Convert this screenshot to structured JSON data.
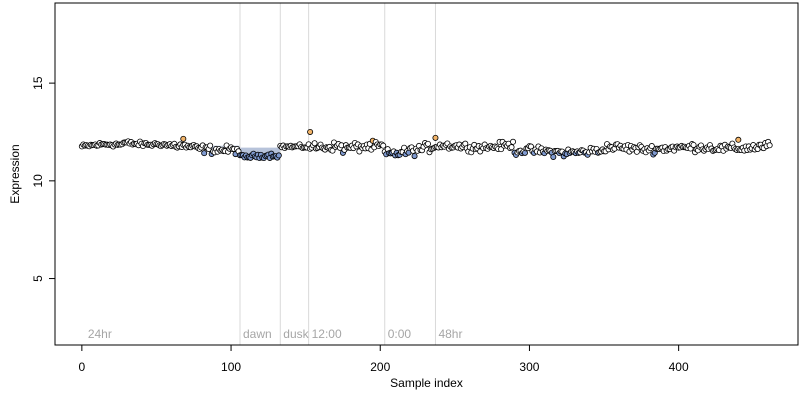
{
  "chart_data": {
    "type": "scatter",
    "xlabel": "Sample index",
    "ylabel": "Expression",
    "xlim": [
      -18,
      480
    ],
    "ylim": [
      1.6,
      19.1
    ],
    "x_ticks": [
      0,
      100,
      200,
      300,
      400
    ],
    "y_ticks": [
      5,
      10,
      15
    ],
    "grid": false,
    "n_points": 462,
    "phase_markers": [
      {
        "x": 106,
        "label": "dawn"
      },
      {
        "x": 133,
        "label": "dusk"
      },
      {
        "x": 152,
        "label": "12:00"
      },
      {
        "x": 203,
        "label": "0:00"
      },
      {
        "x": 237,
        "label": "48hr"
      }
    ],
    "corner_label": {
      "x": 2,
      "label": "24hr"
    },
    "highlight_bands": [
      {
        "x_from": 106,
        "x_to": 133,
        "y_from": 11.3,
        "y_to": 11.7,
        "color": "#aab9d4"
      },
      {
        "x_from": 80,
        "x_to": 106,
        "y_from": 11.6,
        "y_to": 11.8,
        "color": "#c4d0e6"
      }
    ],
    "colors": {
      "point_fill": "#ffffff",
      "point_stroke": "#000000",
      "low_fill": "#7f9ad0",
      "high_fill": "#f2b469",
      "marker_line": "#d9d9d9",
      "phase_label": "#a6a6a6"
    },
    "segments": [
      {
        "x_from": 0,
        "x_to": 28,
        "y_from": 11.75,
        "y_to": 11.85,
        "noise": 0.1
      },
      {
        "x_from": 28,
        "x_to": 55,
        "y_from": 11.95,
        "y_to": 11.9,
        "noise": 0.1
      },
      {
        "x_from": 55,
        "x_to": 80,
        "y_from": 11.85,
        "y_to": 11.6,
        "noise": 0.15
      },
      {
        "x_from": 80,
        "x_to": 106,
        "y_from": 11.6,
        "y_to": 11.65,
        "noise": 0.18
      },
      {
        "x_from": 106,
        "x_to": 133,
        "y_from": 11.25,
        "y_to": 11.25,
        "noise": 0.1
      },
      {
        "x_from": 133,
        "x_to": 152,
        "y_from": 11.7,
        "y_to": 11.8,
        "noise": 0.08
      },
      {
        "x_from": 152,
        "x_to": 175,
        "y_from": 11.8,
        "y_to": 11.75,
        "noise": 0.18
      },
      {
        "x_from": 175,
        "x_to": 203,
        "y_from": 11.6,
        "y_to": 11.8,
        "noise": 0.2
      },
      {
        "x_from": 203,
        "x_to": 237,
        "y_from": 11.4,
        "y_to": 11.7,
        "noise": 0.2
      },
      {
        "x_from": 237,
        "x_to": 290,
        "y_from": 11.75,
        "y_to": 11.8,
        "noise": 0.16
      },
      {
        "x_from": 290,
        "x_to": 350,
        "y_from": 11.5,
        "y_to": 11.5,
        "noise": 0.18
      },
      {
        "x_from": 350,
        "x_to": 400,
        "y_from": 11.65,
        "y_to": 11.7,
        "noise": 0.18
      },
      {
        "x_from": 400,
        "x_to": 462,
        "y_from": 11.65,
        "y_to": 11.75,
        "noise": 0.18
      }
    ],
    "notable_points": [
      {
        "x": 153,
        "y": 12.5
      },
      {
        "x": 440,
        "y": 12.1
      },
      {
        "x": 68,
        "y": 12.15
      },
      {
        "x": 237,
        "y": 12.2
      }
    ]
  }
}
